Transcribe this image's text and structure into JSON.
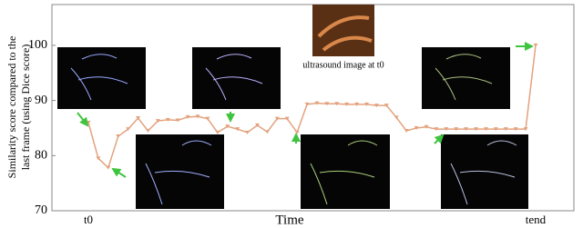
{
  "chart_data": {
    "type": "line",
    "ylabel": [
      "Similarity score compared to the",
      "last frame  (using Dice score)"
    ],
    "xlabel": "Time",
    "annotation": "ultrasound image at t0",
    "categories": [
      "t0",
      null,
      null,
      null,
      null,
      null,
      null,
      null,
      null,
      null,
      null,
      null,
      null,
      null,
      null,
      null,
      null,
      null,
      null,
      null,
      null,
      null,
      null,
      null,
      null,
      null,
      null,
      null,
      null,
      null,
      null,
      null,
      null,
      null,
      null,
      null,
      null,
      null,
      null,
      null,
      null,
      null,
      null,
      null,
      null,
      "tend"
    ],
    "series": [
      {
        "name": "Similarity score",
        "color": "#e3a27e",
        "values": [
          86,
          79.5,
          77.8,
          83.5,
          84.8,
          86.8,
          84.5,
          86.3,
          86.5,
          86.4,
          87,
          87.1,
          86.7,
          84.2,
          85.3,
          84.8,
          84.2,
          85.5,
          84.3,
          86.7,
          86.7,
          84.2,
          89.3,
          89.5,
          89.4,
          89.4,
          89.3,
          89.3,
          89.3,
          89.1,
          89.1,
          86.9,
          84.5,
          85,
          85.2,
          84.8,
          84.8,
          84.8,
          84.8,
          84.8,
          84.8,
          84.8,
          84.8,
          84.8,
          84.8,
          100
        ]
      }
    ],
    "ylim": [
      70,
      107.4
    ],
    "yticks": [
      70,
      80,
      90,
      100
    ]
  }
}
